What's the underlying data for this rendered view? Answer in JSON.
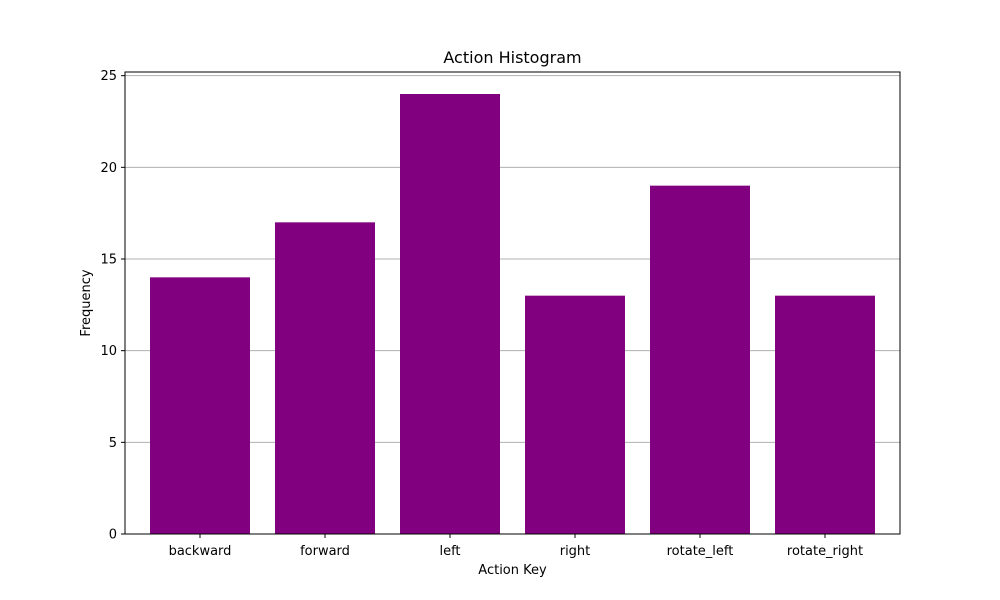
{
  "chart_data": {
    "type": "bar",
    "title": "Action Histogram",
    "xlabel": "Action Key",
    "ylabel": "Frequency",
    "categories": [
      "backward",
      "forward",
      "left",
      "right",
      "rotate_left",
      "rotate_right"
    ],
    "values": [
      14,
      17,
      24,
      13,
      19,
      13
    ],
    "ylim": [
      0,
      25.2
    ],
    "yticks": [
      0,
      5,
      10,
      15,
      20,
      25
    ],
    "grid": "y",
    "legend": "none",
    "colors": {
      "bar": "#800080",
      "grid": "#b0b0b0",
      "axis": "#000000"
    }
  }
}
